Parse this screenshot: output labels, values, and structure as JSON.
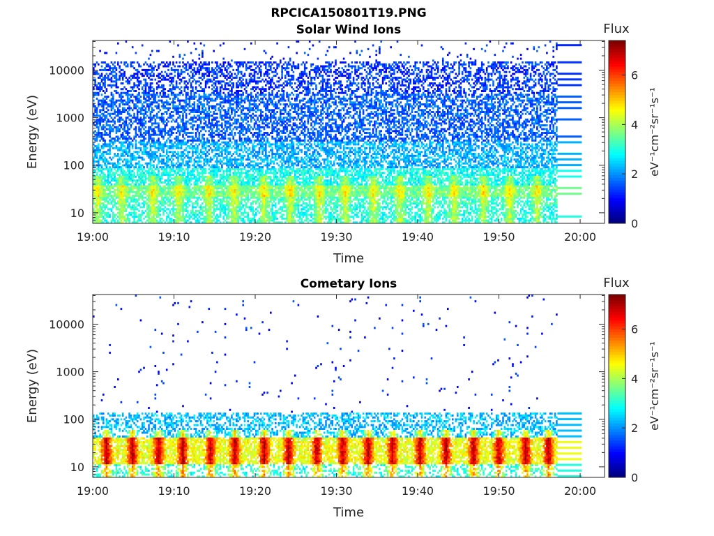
{
  "figure": {
    "title": "RPCICA150801T19.PNG"
  },
  "chart_data": [
    {
      "type": "heatmap",
      "title": "Solar Wind Ions",
      "xlabel": "Time",
      "ylabel": "Energy (eV)",
      "x_ticks": [
        "19:00",
        "19:10",
        "19:20",
        "19:30",
        "19:40",
        "19:50",
        "20:00"
      ],
      "xlim_minutes": [
        0,
        63
      ],
      "data_end_minute": 57.2,
      "y_scale": "log",
      "y_ticks": [
        "10",
        "100",
        "1000",
        "10000"
      ],
      "ylim": [
        6,
        42000
      ],
      "colorbar": {
        "label": "Flux",
        "unit": "eV⁻¹cm⁻²sr⁻¹s⁻¹",
        "ticks": [
          "0",
          "2",
          "4",
          "6"
        ],
        "range": [
          0,
          7.4
        ],
        "colormap": "jet"
      },
      "bands": [
        {
          "emin": 6,
          "emax": 14,
          "flux": 3.0,
          "density": 0.6
        },
        {
          "emin": 14,
          "emax": 20,
          "flux": 3.2,
          "density": 0.65
        },
        {
          "emin": 20,
          "emax": 35,
          "flux": 3.6,
          "density": 0.85
        },
        {
          "emin": 35,
          "emax": 80,
          "flux": 2.9,
          "density": 0.7
        },
        {
          "emin": 80,
          "emax": 300,
          "flux": 2.2,
          "density": 0.6
        },
        {
          "emin": 300,
          "emax": 3000,
          "flux": 1.6,
          "density": 0.55
        },
        {
          "emin": 3000,
          "emax": 15000,
          "flux": 1.3,
          "density": 0.45
        },
        {
          "emin": 15000,
          "emax": 42000,
          "flux": 1.2,
          "density": 0.04
        }
      ],
      "pulse_minutes": [
        0.5,
        3.5,
        7.3,
        10.5,
        14.2,
        17.3,
        21.0,
        24.2,
        27.8,
        31.0,
        34.5,
        37.7,
        41.2,
        44.4,
        48.0,
        51.2,
        54.6
      ]
    },
    {
      "type": "heatmap",
      "title": "Cometary Ions",
      "xlabel": "Time",
      "ylabel": "Energy (eV)",
      "x_ticks": [
        "19:00",
        "19:10",
        "19:20",
        "19:30",
        "19:40",
        "19:50",
        "20:00"
      ],
      "xlim_minutes": [
        0,
        63
      ],
      "data_end_minute": 57.2,
      "y_scale": "log",
      "y_ticks": [
        "10",
        "100",
        "1000",
        "10000"
      ],
      "ylim": [
        6,
        42000
      ],
      "colorbar": {
        "label": "Flux",
        "unit": "eV⁻¹cm⁻²sr⁻¹s⁻¹",
        "ticks": [
          "0",
          "2",
          "4",
          "6"
        ],
        "range": [
          0,
          7.4
        ],
        "colormap": "jet"
      },
      "bands": [
        {
          "emin": 6,
          "emax": 11,
          "flux": 3.0,
          "density": 0.35
        },
        {
          "emin": 11,
          "emax": 40,
          "flux": 4.5,
          "density": 0.75
        },
        {
          "emin": 40,
          "emax": 130,
          "flux": 2.3,
          "density": 0.45
        },
        {
          "emin": 130,
          "emax": 42000,
          "flux": 1.1,
          "density": 0.012
        }
      ],
      "pulse_minutes": [
        1.6,
        4.8,
        8.0,
        11.0,
        14.4,
        17.4,
        21.0,
        24.0,
        27.5,
        30.7,
        33.8,
        36.8,
        40.2,
        43.4,
        46.8,
        49.9,
        53.2,
        56.0
      ]
    }
  ]
}
